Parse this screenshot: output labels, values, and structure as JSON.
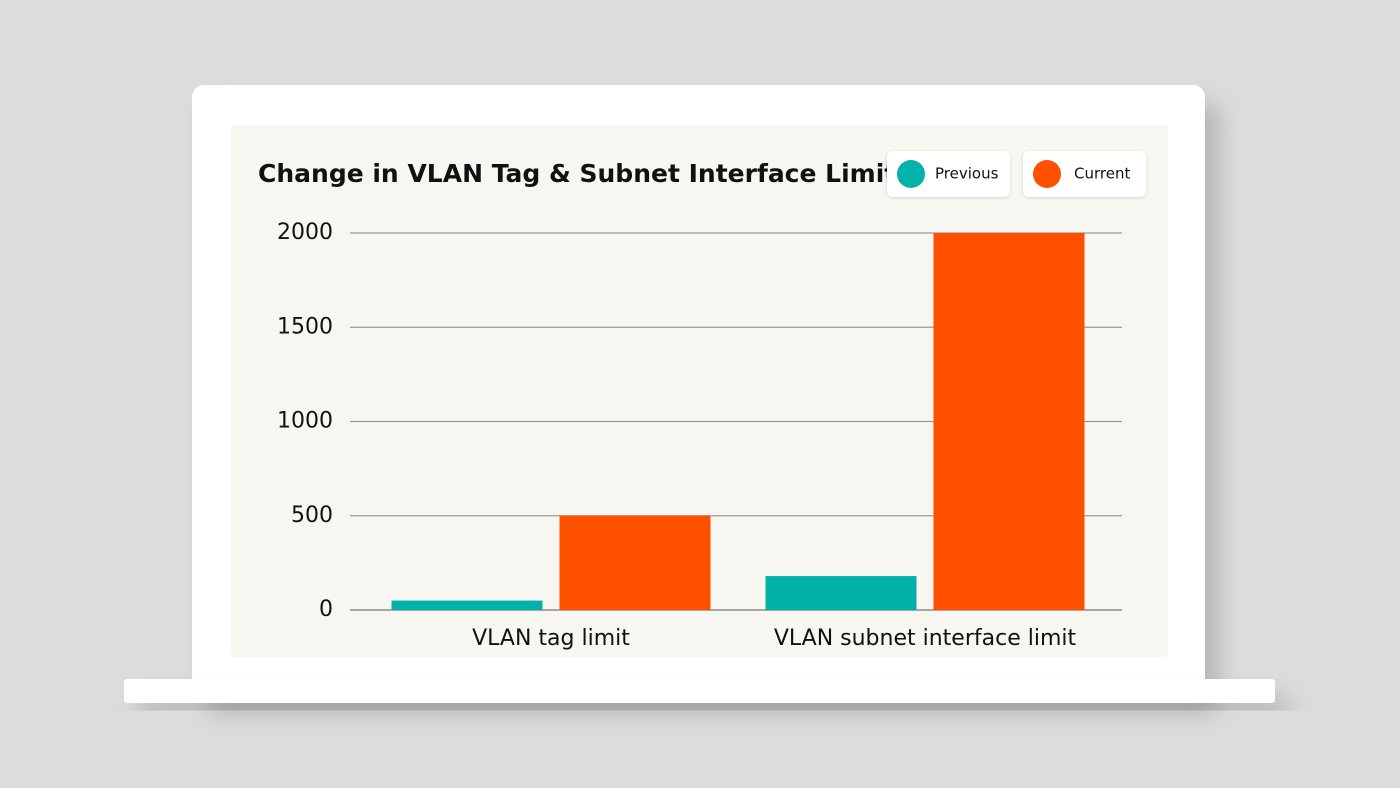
{
  "chart_data": {
    "type": "bar",
    "title": "Change in VLAN Tag & Subnet Interface Limits",
    "categories": [
      "VLAN tag limit",
      "VLAN subnet interface limit"
    ],
    "series": [
      {
        "name": "Previous",
        "color": "#00b2a9",
        "values": [
          50,
          180
        ]
      },
      {
        "name": "Current",
        "color": "#ff5000",
        "values": [
          500,
          2000
        ]
      }
    ],
    "ylim": [
      0,
      2000
    ],
    "yticks": [
      0,
      500,
      1000,
      1500,
      2000
    ],
    "grid": true
  }
}
